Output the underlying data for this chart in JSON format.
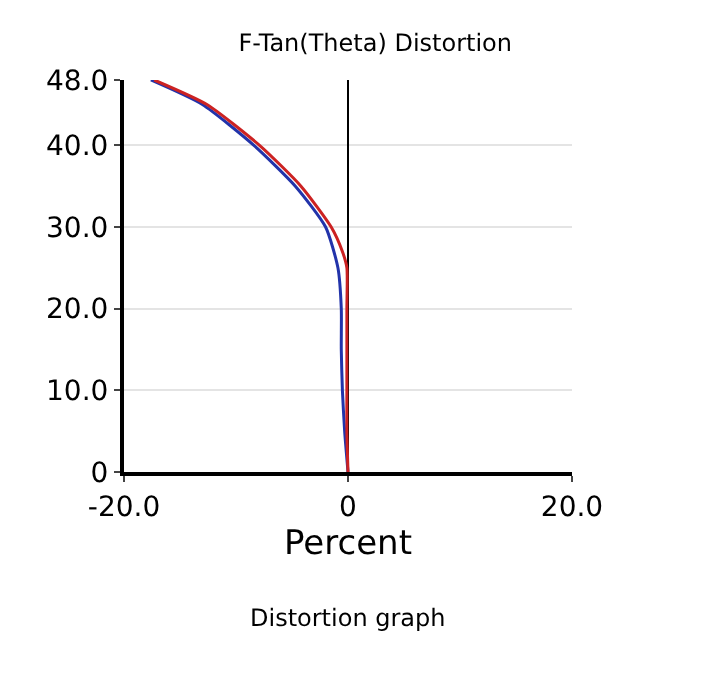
{
  "chart_data": {
    "type": "line",
    "title": "F-Tan(Theta) Distortion",
    "xlabel": "Percent",
    "xlim": [
      -20,
      20
    ],
    "ylim": [
      0,
      48
    ],
    "xticks": [
      {
        "value": -20,
        "label": "-20.0"
      },
      0,
      {
        "value": 20,
        "label": "20.0"
      }
    ],
    "yticks": [
      0,
      {
        "value": 10,
        "label": "10.0"
      },
      {
        "value": 20,
        "label": "20.0"
      },
      {
        "value": 30,
        "label": "30.0"
      },
      {
        "value": 40,
        "label": "40.0"
      },
      {
        "value": 48,
        "label": "48.0"
      }
    ],
    "series": [
      {
        "color": "#2233aa",
        "x": [
          0,
          -0.3,
          -0.5,
          -0.6,
          -0.6,
          -0.9,
          -2.0,
          -4.7,
          -8.4,
          -13.0,
          -17.6
        ],
        "values": [
          0,
          5,
          10,
          15,
          20,
          25,
          30,
          35,
          40,
          45,
          48
        ]
      },
      {
        "color": "#cc2222",
        "x": [
          0,
          -0.1,
          -0.1,
          -0.1,
          -0.1,
          -0.1,
          -0.5,
          -1.5,
          -4.2,
          -7.9,
          -12.6,
          -17.3
        ],
        "values": [
          0,
          5,
          10,
          15,
          20,
          25,
          27,
          30,
          35,
          40,
          45,
          48
        ]
      }
    ],
    "grid": true,
    "marker": "none",
    "line_style": "solid",
    "annotations": [
      "Distortion graph"
    ]
  }
}
